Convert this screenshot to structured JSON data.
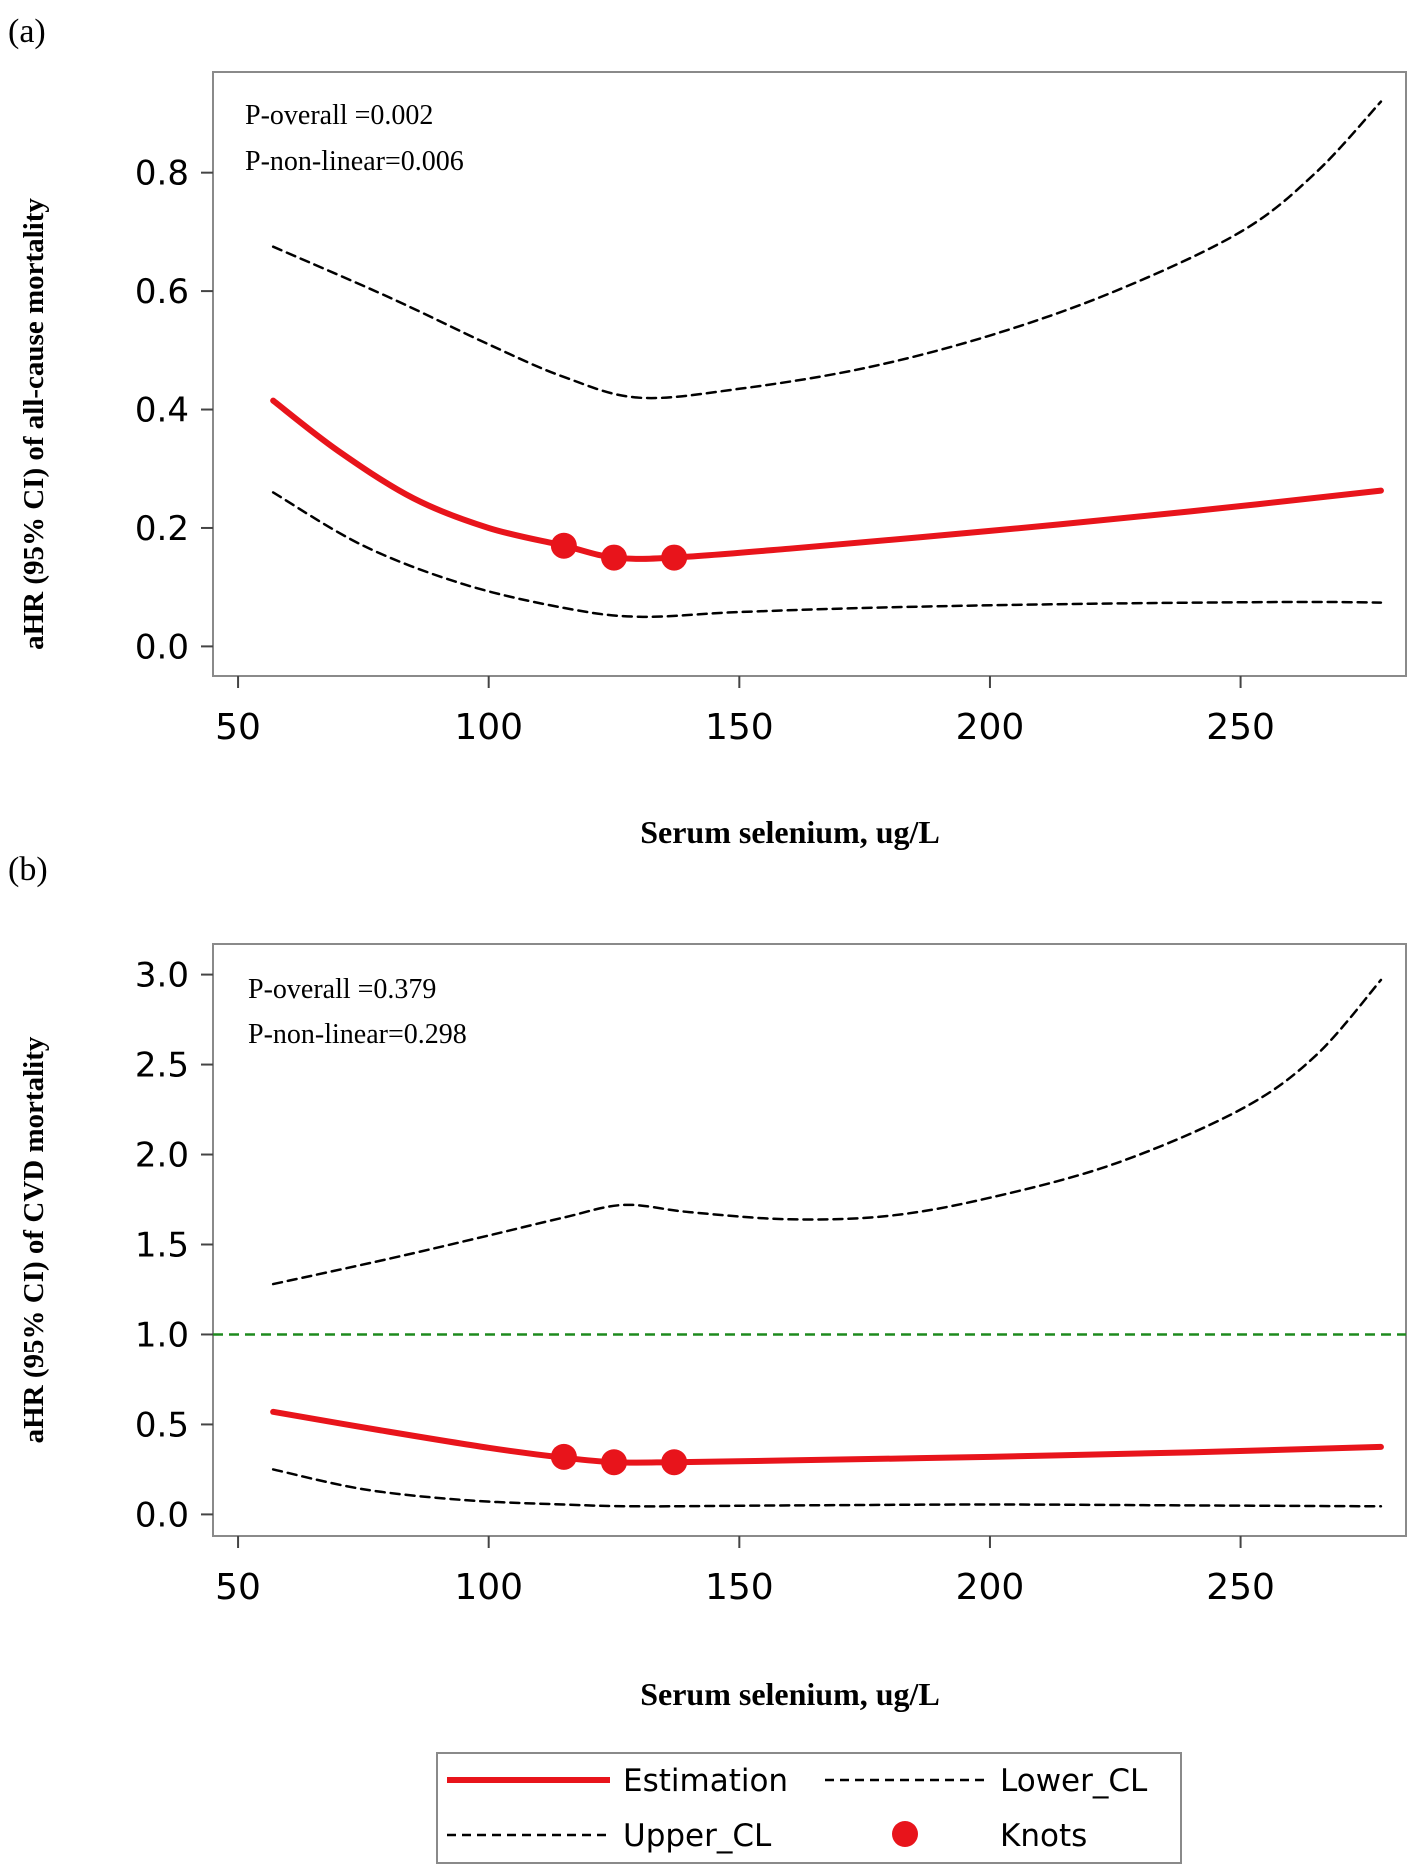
{
  "chart_data": [
    {
      "type": "line",
      "panel_label": "(a)",
      "xlabel": "Serum selenium, ug/L",
      "ylabel": "aHR (95% CI) of all-cause mortality",
      "xlim": [
        45,
        283
      ],
      "ylim": [
        -0.05,
        0.97
      ],
      "xticks": [
        50,
        100,
        150,
        200,
        250
      ],
      "yticks": [
        0.0,
        0.2,
        0.4,
        0.6,
        0.8
      ],
      "ytick_labels": [
        "0.0",
        "0.2",
        "0.4",
        "0.6",
        "0.8"
      ],
      "annotations": [
        "P-overall =0.002",
        "P-non-linear=0.006"
      ],
      "series": [
        {
          "name": "Estimation",
          "style": "solid",
          "color": "#e8141b",
          "x": [
            57,
            70,
            85,
            100,
            115,
            125,
            137,
            160,
            200,
            240,
            278
          ],
          "y": [
            0.415,
            0.33,
            0.25,
            0.2,
            0.17,
            0.15,
            0.15,
            0.165,
            0.195,
            0.228,
            0.263
          ]
        },
        {
          "name": "Upper_CL",
          "style": "dashed",
          "color": "#000000",
          "x": [
            57,
            80,
            100,
            115,
            130,
            150,
            175,
            200,
            225,
            250,
            265,
            278
          ],
          "y": [
            0.675,
            0.59,
            0.51,
            0.455,
            0.42,
            0.435,
            0.47,
            0.525,
            0.6,
            0.7,
            0.8,
            0.92
          ]
        },
        {
          "name": "Lower_CL",
          "style": "dashed",
          "color": "#000000",
          "x": [
            57,
            75,
            95,
            115,
            130,
            150,
            180,
            220,
            260,
            278
          ],
          "y": [
            0.26,
            0.17,
            0.105,
            0.065,
            0.05,
            0.058,
            0.066,
            0.072,
            0.075,
            0.074
          ]
        }
      ],
      "knots": {
        "name": "Knots",
        "color": "#e8141b",
        "x": [
          115,
          125,
          137
        ],
        "y": [
          0.17,
          0.15,
          0.15
        ]
      }
    },
    {
      "type": "line",
      "panel_label": "(b)",
      "xlabel": "Serum selenium, ug/L",
      "ylabel": "aHR (95% CI) of CVD mortality",
      "xlim": [
        45,
        283
      ],
      "ylim": [
        -0.12,
        3.17
      ],
      "xticks": [
        50,
        100,
        150,
        200,
        250
      ],
      "yticks": [
        0.0,
        0.5,
        1.0,
        1.5,
        2.0,
        2.5,
        3.0
      ],
      "ytick_labels": [
        "0.0",
        "0.5",
        "1.0",
        "1.5",
        "2.0",
        "2.5",
        "3.0"
      ],
      "annotations": [
        "P-overall =0.379",
        "P-non-linear=0.298"
      ],
      "reference_line": {
        "y": 1.0,
        "color": "#1e8a1e",
        "style": "dashed"
      },
      "series": [
        {
          "name": "Estimation",
          "style": "solid",
          "color": "#e8141b",
          "x": [
            57,
            80,
            100,
            115,
            125,
            137,
            160,
            200,
            240,
            278
          ],
          "y": [
            0.57,
            0.46,
            0.37,
            0.315,
            0.29,
            0.29,
            0.3,
            0.32,
            0.345,
            0.375
          ]
        },
        {
          "name": "Upper_CL",
          "style": "dashed",
          "color": "#000000",
          "x": [
            57,
            80,
            100,
            115,
            127,
            140,
            160,
            180,
            200,
            225,
            250,
            265,
            278
          ],
          "y": [
            1.28,
            1.42,
            1.55,
            1.65,
            1.72,
            1.68,
            1.64,
            1.66,
            1.76,
            1.95,
            2.25,
            2.55,
            2.97
          ]
        },
        {
          "name": "Lower_CL",
          "style": "dashed",
          "color": "#000000",
          "x": [
            57,
            75,
            95,
            115,
            130,
            160,
            200,
            240,
            278
          ],
          "y": [
            0.25,
            0.14,
            0.08,
            0.055,
            0.045,
            0.05,
            0.055,
            0.05,
            0.045
          ]
        }
      ],
      "knots": {
        "name": "Knots",
        "color": "#e8141b",
        "x": [
          115,
          125,
          137
        ],
        "y": [
          0.32,
          0.29,
          0.29
        ]
      }
    }
  ],
  "legend": {
    "items": [
      {
        "label": "Estimation",
        "style": "solid",
        "color": "#e8141b"
      },
      {
        "label": "Lower_CL",
        "style": "dashed",
        "color": "#000000"
      },
      {
        "label": "Upper_CL",
        "style": "dashed",
        "color": "#000000"
      },
      {
        "label": "Knots",
        "style": "dot",
        "color": "#e8141b"
      }
    ]
  }
}
